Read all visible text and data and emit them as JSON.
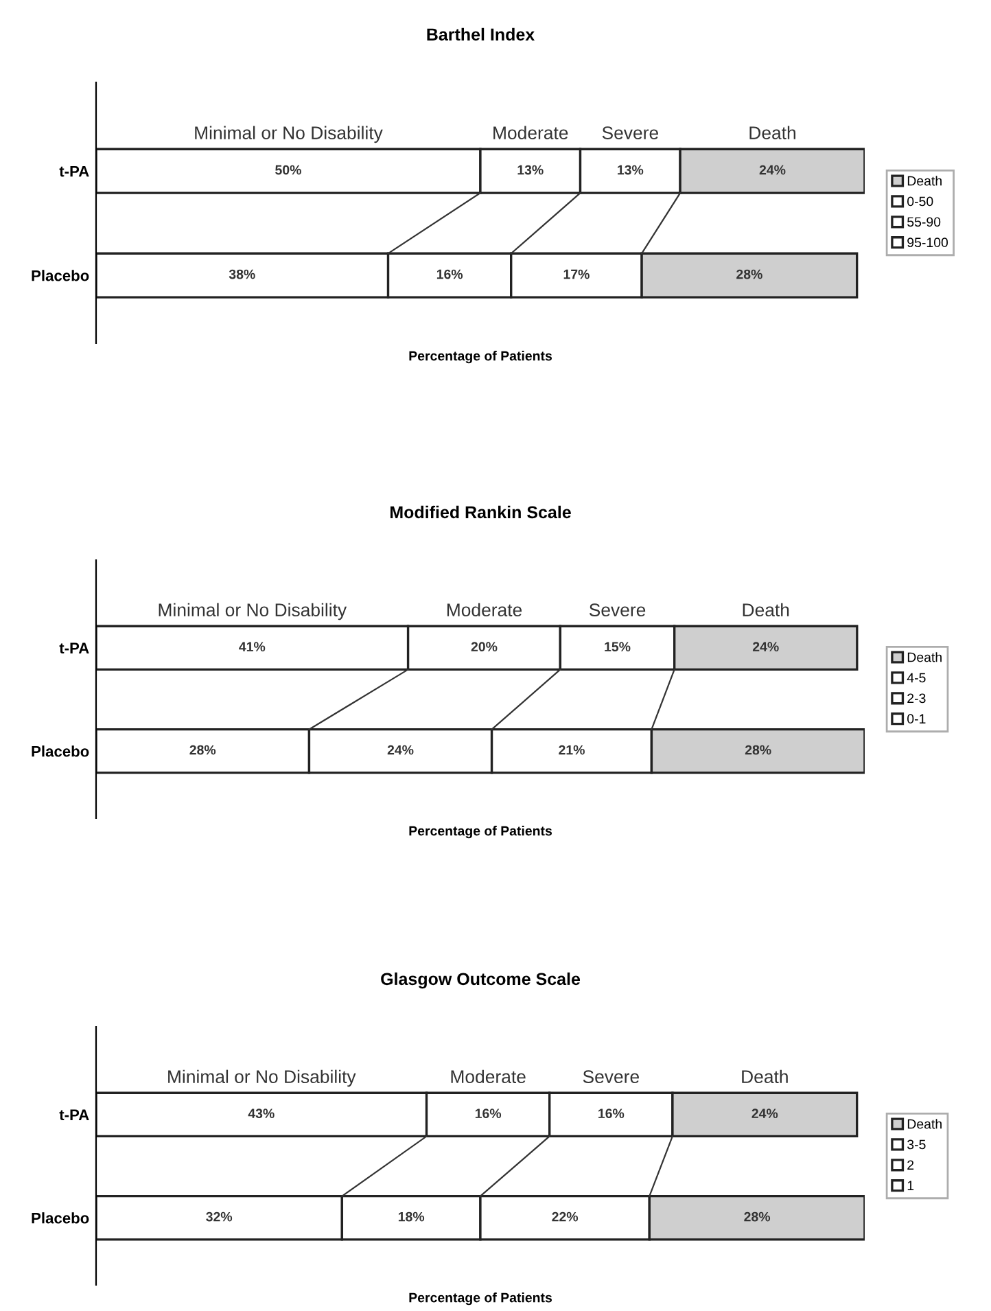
{
  "chart_data": [
    {
      "type": "bar",
      "title": "Barthel Index",
      "xlabel": "Percentage of Patients",
      "orientation": "horizontal",
      "stacked": true,
      "categories": [
        "t-PA",
        "Placebo"
      ],
      "series": [
        {
          "name": "95-100",
          "color": "#ffffff",
          "values": [
            50,
            38
          ],
          "value_labels": [
            "50%",
            "38%"
          ]
        },
        {
          "name": "55-90",
          "color": "#ffffff",
          "values": [
            13,
            16
          ],
          "value_labels": [
            "13%",
            "16%"
          ]
        },
        {
          "name": "0-50",
          "color": "#ffffff",
          "values": [
            13,
            17
          ],
          "value_labels": [
            "13%",
            "17%"
          ]
        },
        {
          "name": "Death",
          "color": "#cfcfcf",
          "values": [
            24,
            28
          ],
          "value_labels": [
            "24%",
            "28%"
          ]
        }
      ],
      "annotations": [
        "Minimal or No Disability",
        "Moderate",
        "Severe",
        "Death"
      ],
      "legend": "right",
      "tick_labels": "y",
      "grid": false
    },
    {
      "type": "bar",
      "title": "Modified Rankin Scale",
      "xlabel": "Percentage of Patients",
      "orientation": "horizontal",
      "stacked": true,
      "categories": [
        "t-PA",
        "Placebo"
      ],
      "series": [
        {
          "name": "0-1",
          "color": "#ffffff",
          "values": [
            41,
            28
          ],
          "value_labels": [
            "41%",
            "28%"
          ]
        },
        {
          "name": "2-3",
          "color": "#ffffff",
          "values": [
            20,
            24
          ],
          "value_labels": [
            "20%",
            "24%"
          ]
        },
        {
          "name": "4-5",
          "color": "#ffffff",
          "values": [
            15,
            21
          ],
          "value_labels": [
            "15%",
            "21%"
          ]
        },
        {
          "name": "Death",
          "color": "#cfcfcf",
          "values": [
            24,
            28
          ],
          "value_labels": [
            "24%",
            "28%"
          ]
        }
      ],
      "annotations": [
        "Minimal or No Disability",
        "Moderate",
        "Severe",
        "Death"
      ],
      "legend": "right",
      "tick_labels": "y",
      "grid": false
    },
    {
      "type": "bar",
      "title": "Glasgow Outcome Scale",
      "xlabel": "Percentage of Patients",
      "orientation": "horizontal",
      "stacked": true,
      "categories": [
        "t-PA",
        "Placebo"
      ],
      "series": [
        {
          "name": "1",
          "color": "#ffffff",
          "values": [
            43,
            32
          ],
          "value_labels": [
            "43%",
            "32%"
          ]
        },
        {
          "name": "2",
          "color": "#ffffff",
          "values": [
            16,
            18
          ],
          "value_labels": [
            "16%",
            "18%"
          ]
        },
        {
          "name": "3-5",
          "color": "#ffffff",
          "values": [
            16,
            22
          ],
          "value_labels": [
            "16%",
            "22%"
          ]
        },
        {
          "name": "Death",
          "color": "#cfcfcf",
          "values": [
            24,
            28
          ],
          "value_labels": [
            "24%",
            "28%"
          ]
        }
      ],
      "annotations": [
        "Minimal or No Disability",
        "Moderate",
        "Severe",
        "Death"
      ],
      "legend": "right",
      "tick_labels": "y",
      "grid": false
    }
  ]
}
